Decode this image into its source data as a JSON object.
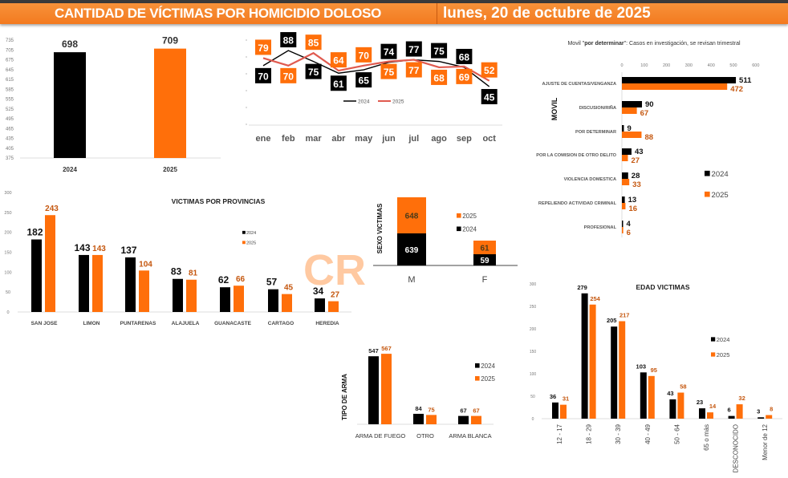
{
  "header": {
    "title": "CANTIDAD DE VÍCTIMAS POR HOMICIDIO DOLOSO",
    "date": "lunes, 20 de octubre de 2025"
  },
  "colors": {
    "c2024": "#000000",
    "c2025": "#ff6f0a",
    "label2025": "#c5570f",
    "line2025": "#e05a4f",
    "header": "#f37a1f"
  },
  "watermark": "CR",
  "chart_data": [
    {
      "id": "total",
      "type": "bar",
      "title": "",
      "categories": [
        "2024",
        "2025"
      ],
      "values": [
        698,
        709
      ],
      "yticks": [
        "375",
        "405",
        "435",
        "465",
        "495",
        "525",
        "555",
        "585",
        "615",
        "645",
        "675",
        "705",
        "735"
      ],
      "ylim": [
        375,
        735
      ]
    },
    {
      "id": "mensual",
      "type": "line",
      "categories": [
        "ene",
        "feb",
        "mar",
        "abr",
        "may",
        "jun",
        "jul",
        "ago",
        "sep",
        "oct"
      ],
      "series": [
        {
          "name": "2024",
          "values": [
            70,
            88,
            75,
            61,
            65,
            74,
            77,
            75,
            68,
            45
          ]
        },
        {
          "name": "2025",
          "values": [
            79,
            70,
            85,
            64,
            70,
            75,
            77,
            68,
            69,
            52
          ]
        }
      ]
    },
    {
      "id": "movil",
      "type": "bar",
      "orientation": "horizontal",
      "title_prefix": "Movil \"",
      "title_bold": "por determinar",
      "title_suffix": "\": Casos en investigación, se revisan trimestral",
      "ylabel": "MOVIL",
      "xticks": [
        "0",
        "100",
        "200",
        "300",
        "400",
        "500",
        "600"
      ],
      "xlim": [
        0,
        600
      ],
      "categories": [
        "AJUSTE DE CUENTAS/VENGANZA",
        "DISCUSION/RIÑA",
        "POR DETERMINAR",
        "POR LA COMISION DE OTRO DELITO",
        "VIOLENCIA DOMESTICA",
        "REPELIENDO ACTIVIDAD CRIMINAL",
        "PROFESIONAL"
      ],
      "series": [
        {
          "name": "2024",
          "values": [
            511,
            90,
            9,
            43,
            28,
            13,
            4
          ]
        },
        {
          "name": "2025",
          "values": [
            472,
            67,
            88,
            27,
            33,
            16,
            6
          ]
        }
      ],
      "legend": "right"
    },
    {
      "id": "provincias",
      "type": "bar",
      "title": "VICTIMAS POR PROVINCIAS",
      "yticks": [
        "0",
        "50",
        "100",
        "150",
        "200",
        "250",
        "300"
      ],
      "ylim": [
        0,
        300
      ],
      "categories": [
        "SAN JOSE",
        "LIMON",
        "PUNTARENAS",
        "ALAJUELA",
        "GUANACASTE",
        "CARTAGO",
        "HEREDIA"
      ],
      "series": [
        {
          "name": "2024",
          "values": [
            182,
            143,
            137,
            83,
            62,
            57,
            34
          ]
        },
        {
          "name": "2025",
          "values": [
            243,
            143,
            104,
            81,
            66,
            45,
            27
          ]
        }
      ],
      "legend": "top-right"
    },
    {
      "id": "sexo",
      "type": "bar",
      "stacked": true,
      "ylabel": "SEXO VICTIMAS",
      "categories": [
        "M",
        "F"
      ],
      "series": [
        {
          "name": "2024",
          "values": [
            639,
            59
          ]
        },
        {
          "name": "2025",
          "values": [
            648,
            61
          ]
        }
      ],
      "legend": "right"
    },
    {
      "id": "arma",
      "type": "bar",
      "ylabel": "TIPO DE ARMA",
      "categories": [
        "ARMA DE FUEGO",
        "OTRO",
        "ARMA BLANCA"
      ],
      "series": [
        {
          "name": "2024",
          "values": [
            547,
            84,
            67
          ]
        },
        {
          "name": "2025",
          "values": [
            567,
            75,
            67
          ]
        }
      ],
      "legend": "right"
    },
    {
      "id": "edad",
      "type": "bar",
      "title": "EDAD VICTIMAS",
      "yticks": [
        "0",
        "50",
        "100",
        "150",
        "200",
        "250",
        "300"
      ],
      "ylim": [
        0,
        300
      ],
      "categories": [
        "12 - 17",
        "18 - 29",
        "30 - 39",
        "40 - 49",
        "50 - 64",
        "65 o más",
        "DESCONOCIDO",
        "Menor de 12"
      ],
      "series": [
        {
          "name": "2024",
          "values": [
            36,
            279,
            205,
            103,
            43,
            23,
            6,
            3
          ]
        },
        {
          "name": "2025",
          "values": [
            31,
            254,
            217,
            95,
            58,
            14,
            32,
            8
          ]
        }
      ],
      "legend": "right"
    }
  ]
}
